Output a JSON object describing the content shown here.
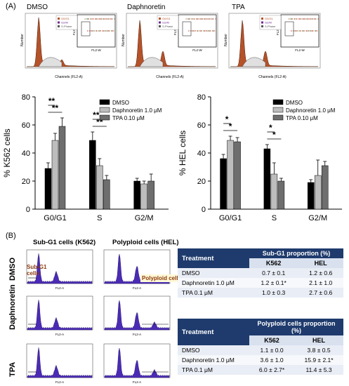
{
  "panel_a_label": "(A)",
  "panel_b_label": "(B)",
  "top_flow": {
    "conditions": [
      "DMSO",
      "Daphnoretin",
      "TPA"
    ],
    "legend": [
      "G0/G1",
      "G2/M",
      "S-Phase"
    ],
    "x_label": "Channels (FL2-A)",
    "y_label": "Number",
    "inset_x": "FL2-W",
    "inset_y": "FL2-A"
  },
  "chart_data": [
    {
      "type": "bar",
      "title": "",
      "ylabel": "% K562 cells",
      "ylim": [
        0,
        80
      ],
      "yticks": [
        0,
        20,
        40,
        60,
        80
      ],
      "categories": [
        "G0/G1",
        "S",
        "G2/M"
      ],
      "series": [
        {
          "name": "DMSO",
          "color": "#000000",
          "values": [
            29,
            49,
            20
          ],
          "errors": [
            4,
            6,
            2
          ]
        },
        {
          "name": "Daphnoretin 1.0 μM",
          "color": "#bdbdbd",
          "values": [
            49,
            31,
            18
          ],
          "errors": [
            5,
            5,
            2
          ]
        },
        {
          "name": "TPA 0.10 μM",
          "color": "#6e6e6e",
          "values": [
            59,
            21,
            20
          ],
          "errors": [
            6,
            3,
            5
          ]
        }
      ],
      "significance": [
        "**",
        "**",
        "**",
        "**"
      ]
    },
    {
      "type": "bar",
      "title": "",
      "ylabel": "% HEL cells",
      "ylim": [
        0,
        80
      ],
      "yticks": [
        0,
        20,
        40,
        60,
        80
      ],
      "categories": [
        "G0/G1",
        "S",
        "G2/M"
      ],
      "series": [
        {
          "name": "DMSO",
          "color": "#000000",
          "values": [
            36,
            43,
            19
          ],
          "errors": [
            3,
            3,
            2
          ]
        },
        {
          "name": "Daphnoretin 1.0 μM",
          "color": "#bdbdbd",
          "values": [
            49,
            25,
            24
          ],
          "errors": [
            3,
            8,
            11
          ]
        },
        {
          "name": "TPA 0.10 μM",
          "color": "#6e6e6e",
          "values": [
            48,
            20,
            31
          ],
          "errors": [
            3,
            2,
            3
          ]
        }
      ],
      "significance": [
        "*",
        "*",
        "*",
        "*"
      ]
    }
  ],
  "panel_b": {
    "col_headers": [
      "Sub-G1 cells (K562)",
      "Polyploid cells (HEL)"
    ],
    "row_labels": [
      "DMSO",
      "Daphnoretin",
      "TPA"
    ],
    "annot_subg1": "Sub-G1 cells",
    "annot_poly": "Polyploid cells",
    "axis_x": "FL2-A"
  },
  "table1": {
    "title": "Sub-G1 proportion (%)",
    "treatment_header": "Treatment",
    "col1": "K562",
    "col2": "HEL",
    "rows": [
      {
        "treatment": "DMSO",
        "k562": "0.7 ± 0.1",
        "hel": "1.2 ± 0.6"
      },
      {
        "treatment": "Daphnoretin 1.0 μM",
        "k562": "1.2 ± 0.1*",
        "hel": "2.1 ± 1.0"
      },
      {
        "treatment": "TPA 0.1 μM",
        "k562": "1.0 ± 0.3",
        "hel": "2.7 ± 0.6"
      }
    ]
  },
  "table2": {
    "title": "Polyploid cells proportion (%)",
    "treatment_header": "Treatment",
    "col1": "K562",
    "col2": "HEL",
    "rows": [
      {
        "treatment": "DMSO",
        "k562": "1.1 ± 0.0",
        "hel": "3.8 ± 0.5"
      },
      {
        "treatment": "Daphnoretin 1.0 μM",
        "k562": "3.6 ± 1.0",
        "hel": "15.9 ± 2.1*"
      },
      {
        "treatment": "TPA 0.1 μM",
        "k562": "6.0 ± 2.7*",
        "hel": "11.4 ± 5.3"
      }
    ]
  }
}
